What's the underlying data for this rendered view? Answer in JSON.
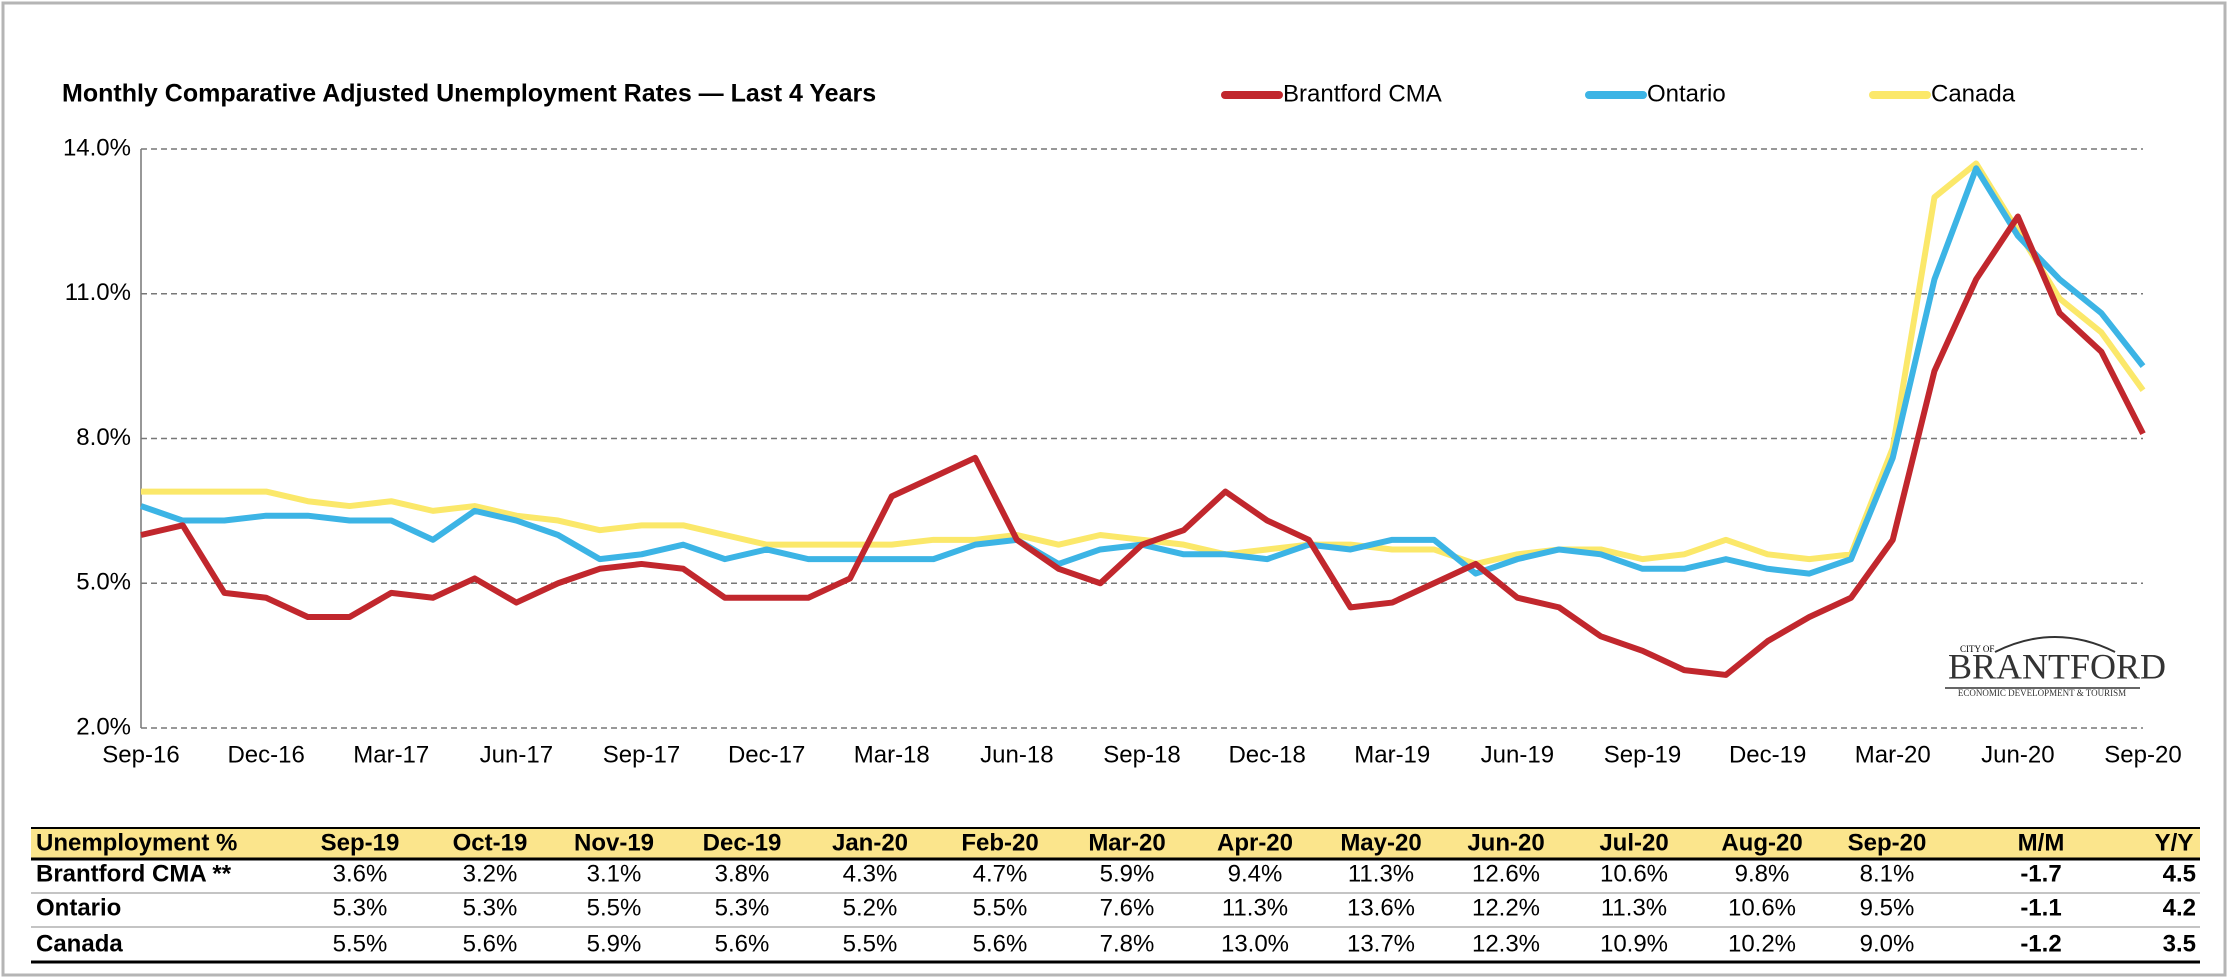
{
  "chart_data": {
    "type": "line",
    "title": "Monthly Comparative Adjusted Unemployment Rates  —  Last 4 Years",
    "categories": [
      "Sep-16",
      null,
      null,
      "Dec-16",
      null,
      null,
      "Mar-17",
      null,
      null,
      "Jun-17",
      null,
      null,
      "Sep-17",
      null,
      null,
      "Dec-17",
      null,
      null,
      "Mar-18",
      null,
      null,
      "Jun-18",
      null,
      null,
      "Sep-18",
      null,
      null,
      "Dec-18",
      null,
      null,
      "Mar-19",
      null,
      null,
      "Jun-19",
      null,
      null,
      "Sep-19",
      null,
      null,
      "Dec-19",
      null,
      null,
      "Mar-20",
      null,
      null,
      "Jun-20",
      null,
      null,
      "Sep-20"
    ],
    "series": [
      {
        "name": "Brantford CMA",
        "color": "#c1272d",
        "values": [
          6.0,
          6.2,
          4.8,
          4.7,
          4.3,
          4.3,
          4.8,
          4.7,
          5.1,
          4.6,
          5.0,
          5.3,
          5.4,
          5.3,
          4.7,
          4.7,
          4.7,
          5.1,
          6.8,
          7.2,
          7.6,
          5.9,
          5.3,
          5.0,
          5.8,
          6.1,
          6.9,
          6.3,
          5.9,
          4.5,
          4.6,
          5.0,
          5.4,
          4.7,
          4.5,
          3.9,
          3.6,
          3.2,
          3.1,
          3.8,
          4.3,
          4.7,
          5.9,
          9.4,
          11.3,
          12.6,
          10.6,
          9.8,
          8.1
        ]
      },
      {
        "name": "Ontario",
        "color": "#3cb4e5",
        "values": [
          6.6,
          6.3,
          6.3,
          6.4,
          6.4,
          6.3,
          6.3,
          5.9,
          6.5,
          6.3,
          6.0,
          5.5,
          5.6,
          5.8,
          5.5,
          5.7,
          5.5,
          5.5,
          5.5,
          5.5,
          5.8,
          5.9,
          5.4,
          5.7,
          5.8,
          5.6,
          5.6,
          5.5,
          5.8,
          5.7,
          5.9,
          5.9,
          5.2,
          5.5,
          5.7,
          5.6,
          5.3,
          5.3,
          5.5,
          5.3,
          5.2,
          5.5,
          7.6,
          11.3,
          13.6,
          12.2,
          11.3,
          10.6,
          9.5
        ]
      },
      {
        "name": "Canada",
        "color": "#fbe86a",
        "values": [
          6.9,
          6.9,
          6.9,
          6.9,
          6.7,
          6.6,
          6.7,
          6.5,
          6.6,
          6.4,
          6.3,
          6.1,
          6.2,
          6.2,
          6.0,
          5.8,
          5.8,
          5.8,
          5.8,
          5.9,
          5.9,
          6.0,
          5.8,
          6.0,
          5.9,
          5.8,
          5.6,
          5.7,
          5.8,
          5.8,
          5.7,
          5.7,
          5.4,
          5.6,
          5.7,
          5.7,
          5.5,
          5.6,
          5.9,
          5.6,
          5.5,
          5.6,
          7.8,
          13.0,
          13.7,
          12.3,
          10.9,
          10.2,
          9.0
        ]
      }
    ],
    "ylim": [
      2,
      14
    ],
    "yticks": [
      {
        "value": 2,
        "label": "2.0%"
      },
      {
        "value": 5,
        "label": "5.0%"
      },
      {
        "value": 8,
        "label": "8.0%"
      },
      {
        "value": 11,
        "label": "11.0%"
      },
      {
        "value": 14,
        "label": "14.0%"
      }
    ],
    "grid": true
  },
  "logo": {
    "small": "CITY OF",
    "name": "BRANTFORD",
    "tagline": "ECONOMIC DEVELOPMENT & TOURISM"
  },
  "table": {
    "header": [
      "Unemployment %",
      "Sep-19",
      "Oct-19",
      "Nov-19",
      "Dec-19",
      "Jan-20",
      "Feb-20",
      "Mar-20",
      "Apr-20",
      "May-20",
      "Jun-20",
      "Jul-20",
      "Aug-20",
      "Sep-20",
      "M/M",
      "Y/Y"
    ],
    "rows": [
      [
        "Brantford CMA **",
        "3.6%",
        "3.2%",
        "3.1%",
        "3.8%",
        "4.3%",
        "4.7%",
        "5.9%",
        "9.4%",
        "11.3%",
        "12.6%",
        "10.6%",
        "9.8%",
        "8.1%",
        "-1.7",
        "4.5"
      ],
      [
        "Ontario",
        "5.3%",
        "5.3%",
        "5.5%",
        "5.3%",
        "5.2%",
        "5.5%",
        "7.6%",
        "11.3%",
        "13.6%",
        "12.2%",
        "11.3%",
        "10.6%",
        "9.5%",
        "-1.1",
        "4.2"
      ],
      [
        "Canada",
        "5.5%",
        "5.6%",
        "5.9%",
        "5.6%",
        "5.5%",
        "5.6%",
        "7.8%",
        "13.0%",
        "13.7%",
        "12.3%",
        "10.9%",
        "10.2%",
        "9.0%",
        "-1.2",
        "3.5"
      ]
    ]
  }
}
